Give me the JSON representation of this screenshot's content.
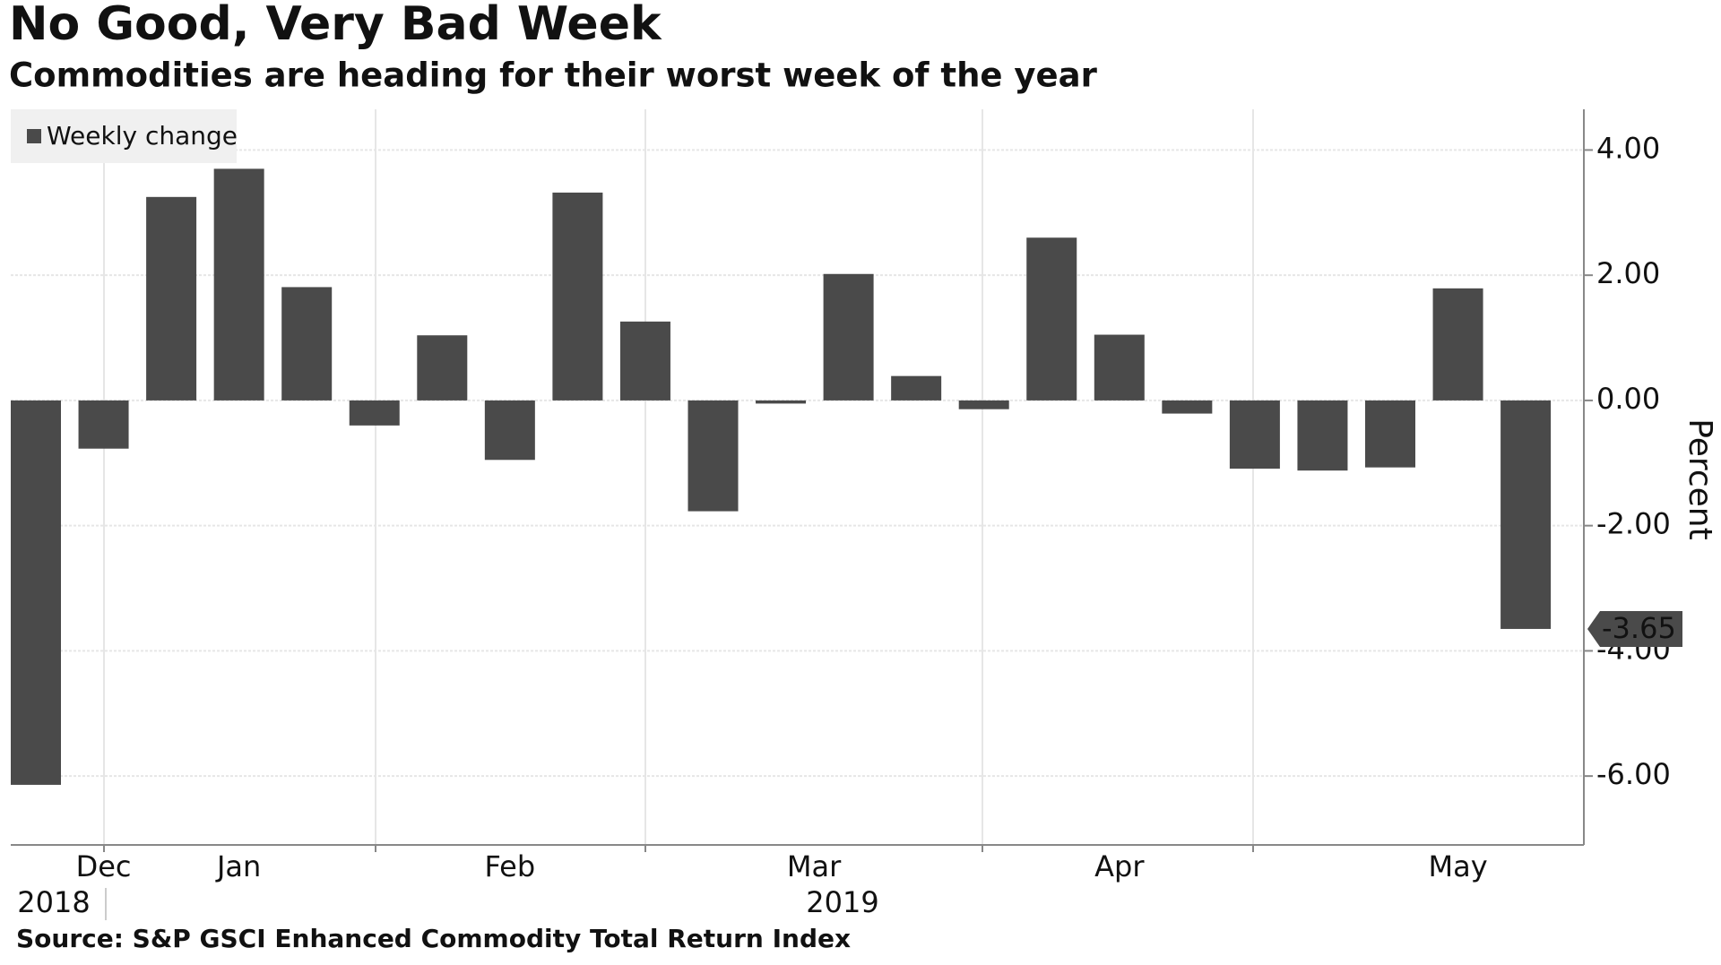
{
  "chart_data": {
    "type": "bar",
    "title": "No Good, Very Bad Week",
    "subtitle": "Commodities are heading for their worst week of the year",
    "source": "Source: S&P GSCI Enhanced Commodity Total Return Index",
    "y_axis_label": "Percent",
    "categories": [
      null,
      "Dec",
      null,
      "Jan",
      null,
      null,
      null,
      "Feb",
      null,
      null,
      null,
      "Mar",
      null,
      null,
      null,
      null,
      "Apr",
      null,
      null,
      null,
      null,
      "May",
      null
    ],
    "x_year_labels": [
      "2018",
      "2019"
    ],
    "series": [
      {
        "name": "Weekly change",
        "color": "#4a4a4a",
        "values": [
          -6.14,
          -0.77,
          3.25,
          3.7,
          1.81,
          -0.4,
          1.04,
          -0.95,
          3.32,
          1.26,
          -1.77,
          -0.05,
          2.02,
          0.39,
          -0.14,
          2.6,
          1.05,
          -0.21,
          -1.09,
          -1.12,
          -1.07,
          1.79,
          -3.65
        ]
      }
    ],
    "ylim": [
      -7.1,
      4.65
    ],
    "yticks": [
      {
        "value": -6,
        "label": "-6.00"
      },
      {
        "value": -4,
        "label": "-4.00"
      },
      {
        "value": -2,
        "label": "-2.00"
      },
      {
        "value": 0,
        "label": "0.00"
      },
      {
        "value": 2,
        "label": "2.00"
      },
      {
        "value": 4,
        "label": "4.00"
      }
    ],
    "grid": true,
    "y_axis_side": "right",
    "legend": "top-left"
  }
}
